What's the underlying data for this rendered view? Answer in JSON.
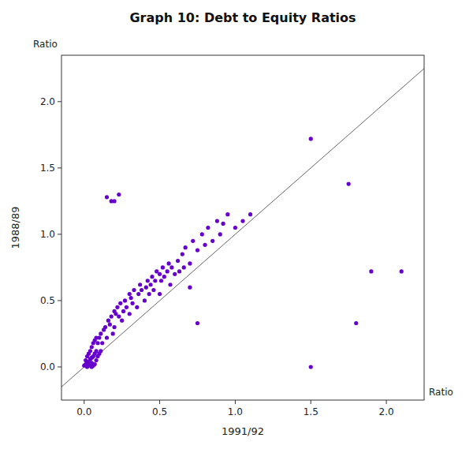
{
  "chart_data": {
    "type": "scatter",
    "title": "Graph 10: Debt to Equity Ratios",
    "xlabel": "1991/92",
    "ylabel": "1988/89",
    "annotations": [
      "Ratio",
      "Ratio"
    ],
    "color": "#6600CC",
    "grid": false,
    "xlim": [
      -0.15,
      2.25
    ],
    "ylim": [
      -0.25,
      2.35
    ],
    "xticks": [
      {
        "value": 0.0,
        "label": "0.0"
      },
      0.5,
      {
        "value": 1.0,
        "label": "1.0"
      },
      1.5,
      {
        "value": 2.0,
        "label": "2.0"
      }
    ],
    "yticks": [
      {
        "value": 0.0,
        "label": "0.0"
      },
      0.5,
      {
        "value": 1.0,
        "label": "1.0"
      },
      1.5,
      {
        "value": 2.0,
        "label": "2.0"
      }
    ],
    "x": [
      0.0,
      0.01,
      0.01,
      0.02,
      0.02,
      0.02,
      0.03,
      0.03,
      0.03,
      0.04,
      0.04,
      0.04,
      0.05,
      0.05,
      0.05,
      0.05,
      0.06,
      0.06,
      0.06,
      0.07,
      0.07,
      0.07,
      0.08,
      0.08,
      0.08,
      0.09,
      0.09,
      0.1,
      0.1,
      0.11,
      0.11,
      0.12,
      0.13,
      0.14,
      0.15,
      0.16,
      0.17,
      0.18,
      0.19,
      0.2,
      0.2,
      0.21,
      0.22,
      0.23,
      0.24,
      0.25,
      0.26,
      0.27,
      0.28,
      0.3,
      0.3,
      0.31,
      0.32,
      0.33,
      0.35,
      0.36,
      0.37,
      0.38,
      0.4,
      0.41,
      0.42,
      0.43,
      0.44,
      0.45,
      0.46,
      0.47,
      0.48,
      0.5,
      0.5,
      0.51,
      0.52,
      0.53,
      0.55,
      0.56,
      0.57,
      0.58,
      0.6,
      0.62,
      0.63,
      0.65,
      0.66,
      0.67,
      0.7,
      0.72,
      0.75,
      0.78,
      0.8,
      0.82,
      0.85,
      0.88,
      0.9,
      0.92,
      0.95,
      1.0,
      1.05,
      1.1,
      1.5,
      1.75,
      1.9,
      2.1,
      0.2,
      0.23,
      0.18,
      0.15,
      1.5,
      1.8,
      0.7,
      0.75
    ],
    "y": [
      0.01,
      0.02,
      0.05,
      0.0,
      0.03,
      0.08,
      0.01,
      0.04,
      0.1,
      0.02,
      0.06,
      0.12,
      0.0,
      0.03,
      0.07,
      0.15,
      0.01,
      0.08,
      0.18,
      0.02,
      0.1,
      0.2,
      0.05,
      0.12,
      0.22,
      0.08,
      0.18,
      0.1,
      0.22,
      0.12,
      0.25,
      0.18,
      0.28,
      0.3,
      0.22,
      0.35,
      0.32,
      0.38,
      0.25,
      0.3,
      0.42,
      0.4,
      0.45,
      0.38,
      0.48,
      0.35,
      0.42,
      0.5,
      0.45,
      0.4,
      0.55,
      0.52,
      0.48,
      0.58,
      0.45,
      0.55,
      0.62,
      0.58,
      0.5,
      0.6,
      0.65,
      0.55,
      0.62,
      0.68,
      0.58,
      0.65,
      0.72,
      0.55,
      0.7,
      0.65,
      0.75,
      0.68,
      0.72,
      0.78,
      0.62,
      0.75,
      0.7,
      0.8,
      0.72,
      0.85,
      0.75,
      0.9,
      0.78,
      0.95,
      0.88,
      1.0,
      0.92,
      1.05,
      0.95,
      1.1,
      1.0,
      1.08,
      1.15,
      1.05,
      1.1,
      1.15,
      1.72,
      1.38,
      0.72,
      0.72,
      1.25,
      1.3,
      1.25,
      1.28,
      0.0,
      0.33,
      0.6,
      0.33
    ]
  }
}
